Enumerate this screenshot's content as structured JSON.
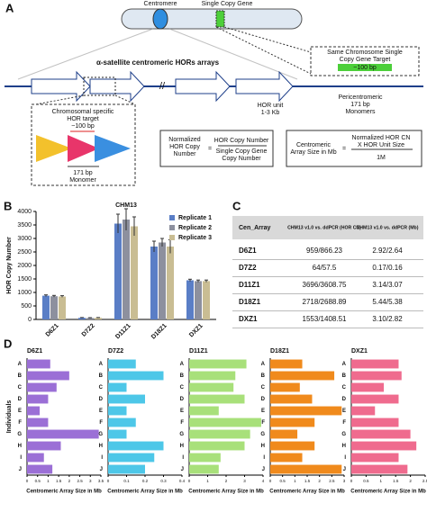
{
  "diagram": {
    "panel": "A",
    "centromere": "Centromere",
    "single_copy_gene": "Single Copy Gene",
    "gene_target": [
      "Same Chromosome Single",
      "Copy Gene Target"
    ],
    "gene_target_size": "~100 bp",
    "array_title": "α-satellite centromeric HORs arrays",
    "hor_unit": [
      "HOR unit",
      "1-3 Kb"
    ],
    "pericentromeric": [
      "Pericentromeric",
      "171 bp",
      "Monomers"
    ],
    "hor_target": [
      "Chromosomal specific",
      "HOR target"
    ],
    "hor_target_size": "~100 bp",
    "monomer": [
      "171 bp",
      "Monomer"
    ],
    "formula1": {
      "left": [
        "Normalized",
        "HOR Copy",
        "Number"
      ],
      "eq": "=",
      "num": "HOR Copy Number",
      "den": [
        "Single Copy Gene",
        "Copy Number"
      ]
    },
    "formula2": {
      "left": [
        "Centromeric",
        "Array Size in Mb"
      ],
      "eq": "=",
      "num": [
        "Normalized HOR CN",
        "X HOR Unit Size"
      ],
      "den": "1M"
    }
  },
  "table": {
    "panel": "C",
    "header": [
      "Cen_Array",
      "CHM13 v1.0 vs. ddPCR (HOR CN)",
      "CHM13 v1.0 vs. ddPCR (Mb)"
    ],
    "rows": [
      [
        "D6Z1",
        "959/866.23",
        "2.92/2.64"
      ],
      [
        "D7Z2",
        "64/57.5",
        "0.17/0.16"
      ],
      [
        "D11Z1",
        "3696/3608.75",
        "3.14/3.07"
      ],
      [
        "D18Z1",
        "2718/2688.89",
        "5.44/5.38"
      ],
      [
        "DXZ1",
        "1553/1408.51",
        "3.10/2.82"
      ]
    ]
  },
  "chart_data": [
    {
      "type": "bar",
      "panel": "B",
      "title": "CHM13",
      "ylabel": "HOR Copy Number",
      "categories": [
        "D6Z1",
        "D7Z2",
        "D11Z1",
        "D18Z1",
        "DXZ1"
      ],
      "ylim": [
        0,
        4000
      ],
      "yticks": [
        0,
        500,
        1000,
        1500,
        2000,
        2500,
        3000,
        3500,
        4000
      ],
      "series": [
        {
          "name": "Replicate 1",
          "color": "#5a7ec6",
          "values": [
            880,
            60,
            3550,
            2700,
            1450
          ],
          "errors": [
            30,
            10,
            350,
            200,
            40
          ]
        },
        {
          "name": "Replicate 2",
          "color": "#8d909e",
          "values": [
            860,
            55,
            3700,
            2850,
            1420
          ],
          "errors": [
            30,
            10,
            400,
            150,
            40
          ]
        },
        {
          "name": "Replicate 3",
          "color": "#c9bd93",
          "values": [
            850,
            60,
            3450,
            2700,
            1420
          ],
          "errors": [
            30,
            10,
            350,
            250,
            40
          ]
        }
      ]
    },
    {
      "type": "barh",
      "panel": "D",
      "title": "D6Z1",
      "ylabel": "Individuals",
      "xlabel": "Centromeric Array Size in Mb",
      "color": "#9b6fd6",
      "categories": [
        "A",
        "B",
        "C",
        "D",
        "E",
        "F",
        "G",
        "H",
        "I",
        "J"
      ],
      "values": [
        1.1,
        2.0,
        1.4,
        1.0,
        0.6,
        1.0,
        3.4,
        1.6,
        0.8,
        1.2
      ],
      "xlim": [
        0,
        3.5
      ],
      "xticks": [
        0,
        0.5,
        1,
        1.5,
        2,
        2.5,
        3,
        3.5
      ]
    },
    {
      "type": "barh",
      "title": "D7Z2",
      "xlabel": "Centromeric Array Size in Mb",
      "color": "#4dc7e8",
      "categories": [
        "A",
        "B",
        "C",
        "D",
        "E",
        "F",
        "G",
        "H",
        "I",
        "J"
      ],
      "values": [
        0.15,
        0.3,
        0.1,
        0.2,
        0.1,
        0.15,
        0.1,
        0.3,
        0.25,
        0.2
      ],
      "xlim": [
        0,
        0.4
      ],
      "xticks": [
        0,
        0.1,
        0.2,
        0.3,
        0.4
      ]
    },
    {
      "type": "barh",
      "title": "D11Z1",
      "xlabel": "Centromeric Array Size in Mb",
      "color": "#a8e07a",
      "categories": [
        "A",
        "B",
        "C",
        "D",
        "E",
        "F",
        "G",
        "H",
        "I",
        "J"
      ],
      "values": [
        3.1,
        2.5,
        2.4,
        3.0,
        1.6,
        3.9,
        3.3,
        3.0,
        1.7,
        1.6
      ],
      "xlim": [
        0,
        4
      ],
      "xticks": [
        0,
        1,
        2,
        3,
        4
      ]
    },
    {
      "type": "barh",
      "title": "D18Z1",
      "xlabel": "Centromeric Array Size in Mb",
      "color": "#f08a1c",
      "categories": [
        "A",
        "B",
        "C",
        "D",
        "E",
        "F",
        "G",
        "H",
        "I",
        "J"
      ],
      "values": [
        1.3,
        2.6,
        1.2,
        1.7,
        2.9,
        1.8,
        1.1,
        1.8,
        1.3,
        2.9
      ],
      "xlim": [
        0,
        3
      ],
      "xticks": [
        0,
        0.5,
        1,
        1.5,
        2,
        2.5,
        3
      ]
    },
    {
      "type": "barh",
      "title": "DXZ1",
      "xlabel": "Centromeric Array Size in Mb",
      "color": "#ef6b8e",
      "categories": [
        "A",
        "B",
        "C",
        "D",
        "E",
        "F",
        "G",
        "H",
        "I",
        "J"
      ],
      "values": [
        1.6,
        1.7,
        1.1,
        1.6,
        0.8,
        1.6,
        2.0,
        2.2,
        1.6,
        1.9
      ],
      "xlim": [
        0,
        2.5
      ],
      "xticks": [
        0,
        0.5,
        1,
        1.5,
        2,
        2.5
      ]
    }
  ]
}
